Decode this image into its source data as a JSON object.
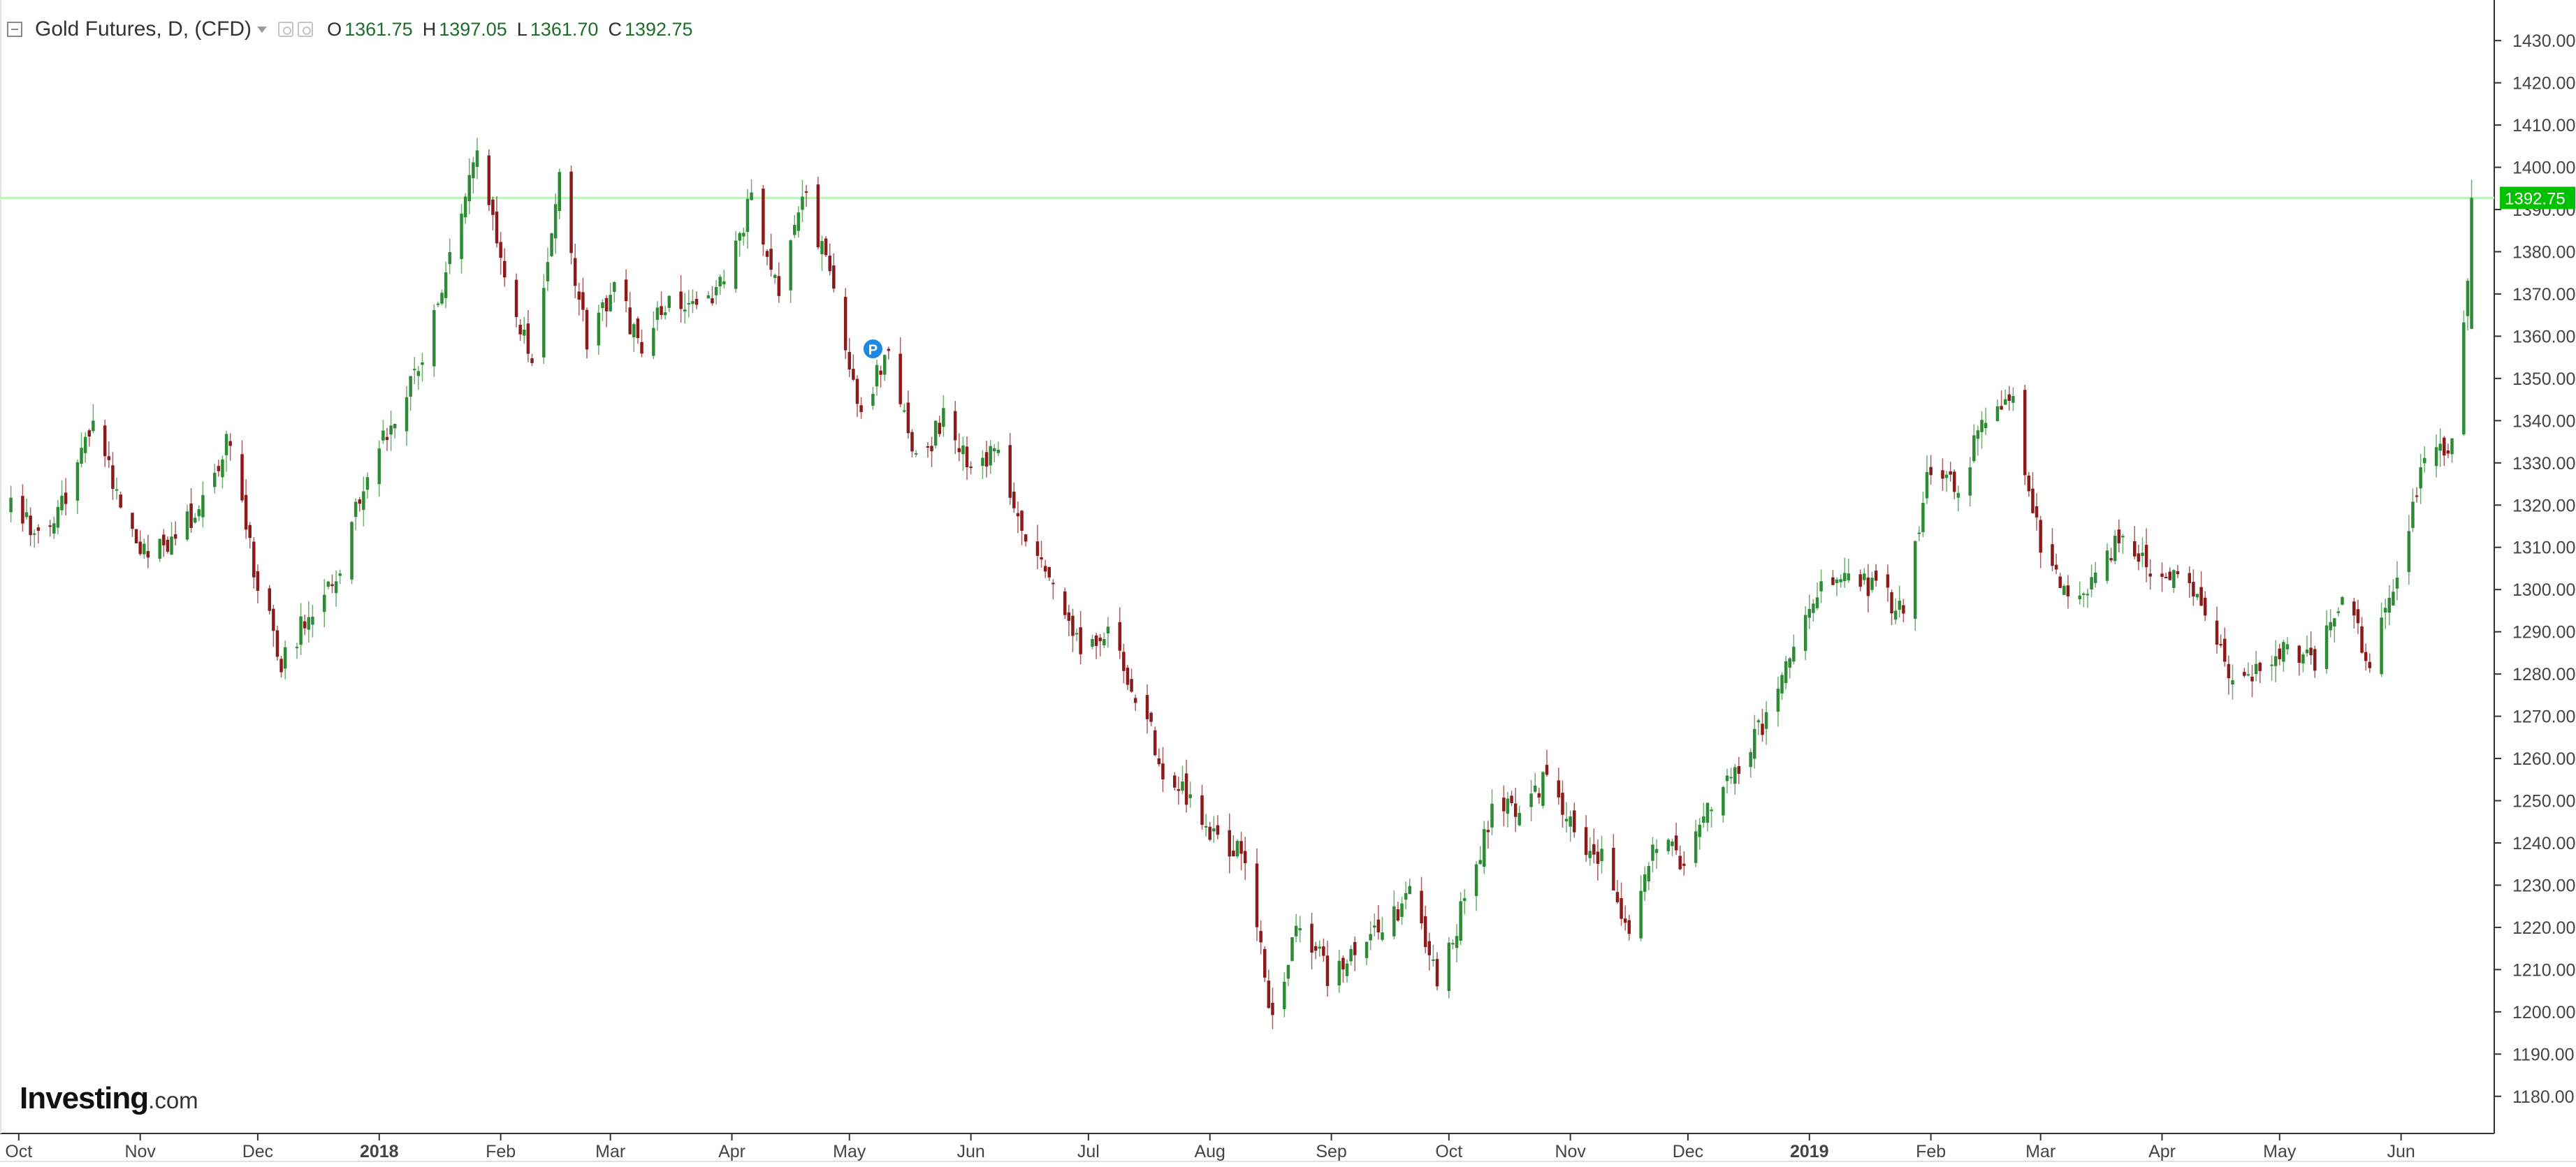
{
  "header": {
    "title": "Gold Futures, D, (CFD)",
    "open_label": "O",
    "open": "1361.75",
    "high_label": "H",
    "high": "1397.05",
    "low_label": "L",
    "low": "1361.70",
    "close_label": "C",
    "close": "1392.75"
  },
  "brand": {
    "name": "Investing",
    "suffix": ".com"
  },
  "colors": {
    "up": "#2e8b35",
    "down": "#8b1a1a",
    "price_line": "#b9f5b9",
    "price_tag": "#00c000"
  },
  "chart_data": {
    "type": "candlestick",
    "title": "Gold Futures, D, (CFD)",
    "ylim": [
      1175,
      1433
    ],
    "y_ticks": [
      "1180.00",
      "1190.00",
      "1200.00",
      "1210.00",
      "1220.00",
      "1230.00",
      "1240.00",
      "1250.00",
      "1260.00",
      "1270.00",
      "1280.00",
      "1290.00",
      "1300.00",
      "1310.00",
      "1320.00",
      "1330.00",
      "1340.00",
      "1350.00",
      "1360.00",
      "1370.00",
      "1380.00",
      "1390.00",
      "1400.00",
      "1410.00",
      "1420.00",
      "1430.00"
    ],
    "x_ticks": [
      {
        "label": "Oct",
        "date": "2017-10-01"
      },
      {
        "label": "Nov",
        "date": "2017-11-01"
      },
      {
        "label": "Dec",
        "date": "2017-12-01"
      },
      {
        "label": "2018",
        "date": "2018-01-01",
        "bold": true
      },
      {
        "label": "Feb",
        "date": "2018-02-01"
      },
      {
        "label": "Mar",
        "date": "2018-03-01"
      },
      {
        "label": "Apr",
        "date": "2018-04-01"
      },
      {
        "label": "May",
        "date": "2018-05-01"
      },
      {
        "label": "Jun",
        "date": "2018-06-01"
      },
      {
        "label": "Jul",
        "date": "2018-07-01"
      },
      {
        "label": "Aug",
        "date": "2018-08-01"
      },
      {
        "label": "Sep",
        "date": "2018-09-01"
      },
      {
        "label": "Oct",
        "date": "2018-10-01"
      },
      {
        "label": "Nov",
        "date": "2018-11-01"
      },
      {
        "label": "Dec",
        "date": "2018-12-01"
      },
      {
        "label": "2019",
        "date": "2019-01-01",
        "bold": true
      },
      {
        "label": "Feb",
        "date": "2019-02-01"
      },
      {
        "label": "Mar",
        "date": "2019-03-01"
      },
      {
        "label": "Apr",
        "date": "2019-04-01"
      },
      {
        "label": "May",
        "date": "2019-05-01"
      },
      {
        "label": "Jun",
        "date": "2019-06-01"
      }
    ],
    "last_price": 1392.75,
    "last_price_label": "1392.75",
    "marker": {
      "date": "2018-05-07",
      "label": "P",
      "price": 1357
    },
    "grid": false,
    "closes": [
      [
        "2017-09-29",
        1320
      ],
      [
        "2017-10-06",
        1314
      ],
      [
        "2017-10-13",
        1322
      ],
      [
        "2017-10-20",
        1342
      ],
      [
        "2017-10-27",
        1318
      ],
      [
        "2017-11-03",
        1307
      ],
      [
        "2017-11-10",
        1312
      ],
      [
        "2017-11-17",
        1321
      ],
      [
        "2017-11-24",
        1336
      ],
      [
        "2017-11-30",
        1305
      ],
      [
        "2017-12-07",
        1283
      ],
      [
        "2017-12-14",
        1294
      ],
      [
        "2017-12-21",
        1301
      ],
      [
        "2017-12-29",
        1328
      ],
      [
        "2018-01-05",
        1341
      ],
      [
        "2018-01-12",
        1353
      ],
      [
        "2018-01-19",
        1380
      ],
      [
        "2018-01-26",
        1405
      ],
      [
        "2018-02-02",
        1376
      ],
      [
        "2018-02-09",
        1352
      ],
      [
        "2018-02-16",
        1396
      ],
      [
        "2018-02-23",
        1358
      ],
      [
        "2018-03-02",
        1373
      ],
      [
        "2018-03-09",
        1356
      ],
      [
        "2018-03-16",
        1370
      ],
      [
        "2018-03-23",
        1365
      ],
      [
        "2018-03-30",
        1375
      ],
      [
        "2018-04-06",
        1392
      ],
      [
        "2018-04-13",
        1370
      ],
      [
        "2018-04-20",
        1395
      ],
      [
        "2018-04-27",
        1369
      ],
      [
        "2018-05-04",
        1343
      ],
      [
        "2018-05-11",
        1357
      ],
      [
        "2018-05-18",
        1330
      ],
      [
        "2018-05-25",
        1340
      ],
      [
        "2018-06-01",
        1328
      ],
      [
        "2018-06-08",
        1335
      ],
      [
        "2018-06-15",
        1310
      ],
      [
        "2018-06-22",
        1302
      ],
      [
        "2018-06-29",
        1287
      ],
      [
        "2018-07-06",
        1289
      ],
      [
        "2018-07-13",
        1276
      ],
      [
        "2018-07-20",
        1258
      ],
      [
        "2018-07-27",
        1250
      ],
      [
        "2018-08-03",
        1240
      ],
      [
        "2018-08-10",
        1237
      ],
      [
        "2018-08-17",
        1198
      ],
      [
        "2018-08-24",
        1222
      ],
      [
        "2018-08-31",
        1209
      ],
      [
        "2018-09-07",
        1216
      ],
      [
        "2018-09-14",
        1220
      ],
      [
        "2018-09-21",
        1228
      ],
      [
        "2018-09-28",
        1208
      ],
      [
        "2018-10-05",
        1226
      ],
      [
        "2018-10-12",
        1247
      ],
      [
        "2018-10-19",
        1248
      ],
      [
        "2018-10-26",
        1256
      ],
      [
        "2018-11-02",
        1242
      ],
      [
        "2018-11-09",
        1236
      ],
      [
        "2018-11-16",
        1220
      ],
      [
        "2018-11-23",
        1240
      ],
      [
        "2018-11-30",
        1236
      ],
      [
        "2018-12-07",
        1250
      ],
      [
        "2018-12-14",
        1258
      ],
      [
        "2018-12-21",
        1270
      ],
      [
        "2018-12-28",
        1286
      ],
      [
        "2019-01-04",
        1300
      ],
      [
        "2019-01-11",
        1304
      ],
      [
        "2019-01-18",
        1300
      ],
      [
        "2019-01-25",
        1295
      ],
      [
        "2019-02-01",
        1330
      ],
      [
        "2019-02-08",
        1324
      ],
      [
        "2019-02-15",
        1341
      ],
      [
        "2019-02-22",
        1345
      ],
      [
        "2019-03-01",
        1310
      ],
      [
        "2019-03-08",
        1297
      ],
      [
        "2019-03-15",
        1303
      ],
      [
        "2019-03-22",
        1315
      ],
      [
        "2019-03-29",
        1305
      ],
      [
        "2019-04-05",
        1304
      ],
      [
        "2019-04-12",
        1296
      ],
      [
        "2019-04-19",
        1276
      ],
      [
        "2019-04-26",
        1282
      ],
      [
        "2019-05-03",
        1286
      ],
      [
        "2019-05-10",
        1282
      ],
      [
        "2019-05-17",
        1298
      ],
      [
        "2019-05-24",
        1284
      ],
      [
        "2019-05-31",
        1302
      ],
      [
        "2019-06-07",
        1331
      ],
      [
        "2019-06-14",
        1335
      ],
      [
        "2019-06-20",
        1392.75
      ]
    ]
  }
}
